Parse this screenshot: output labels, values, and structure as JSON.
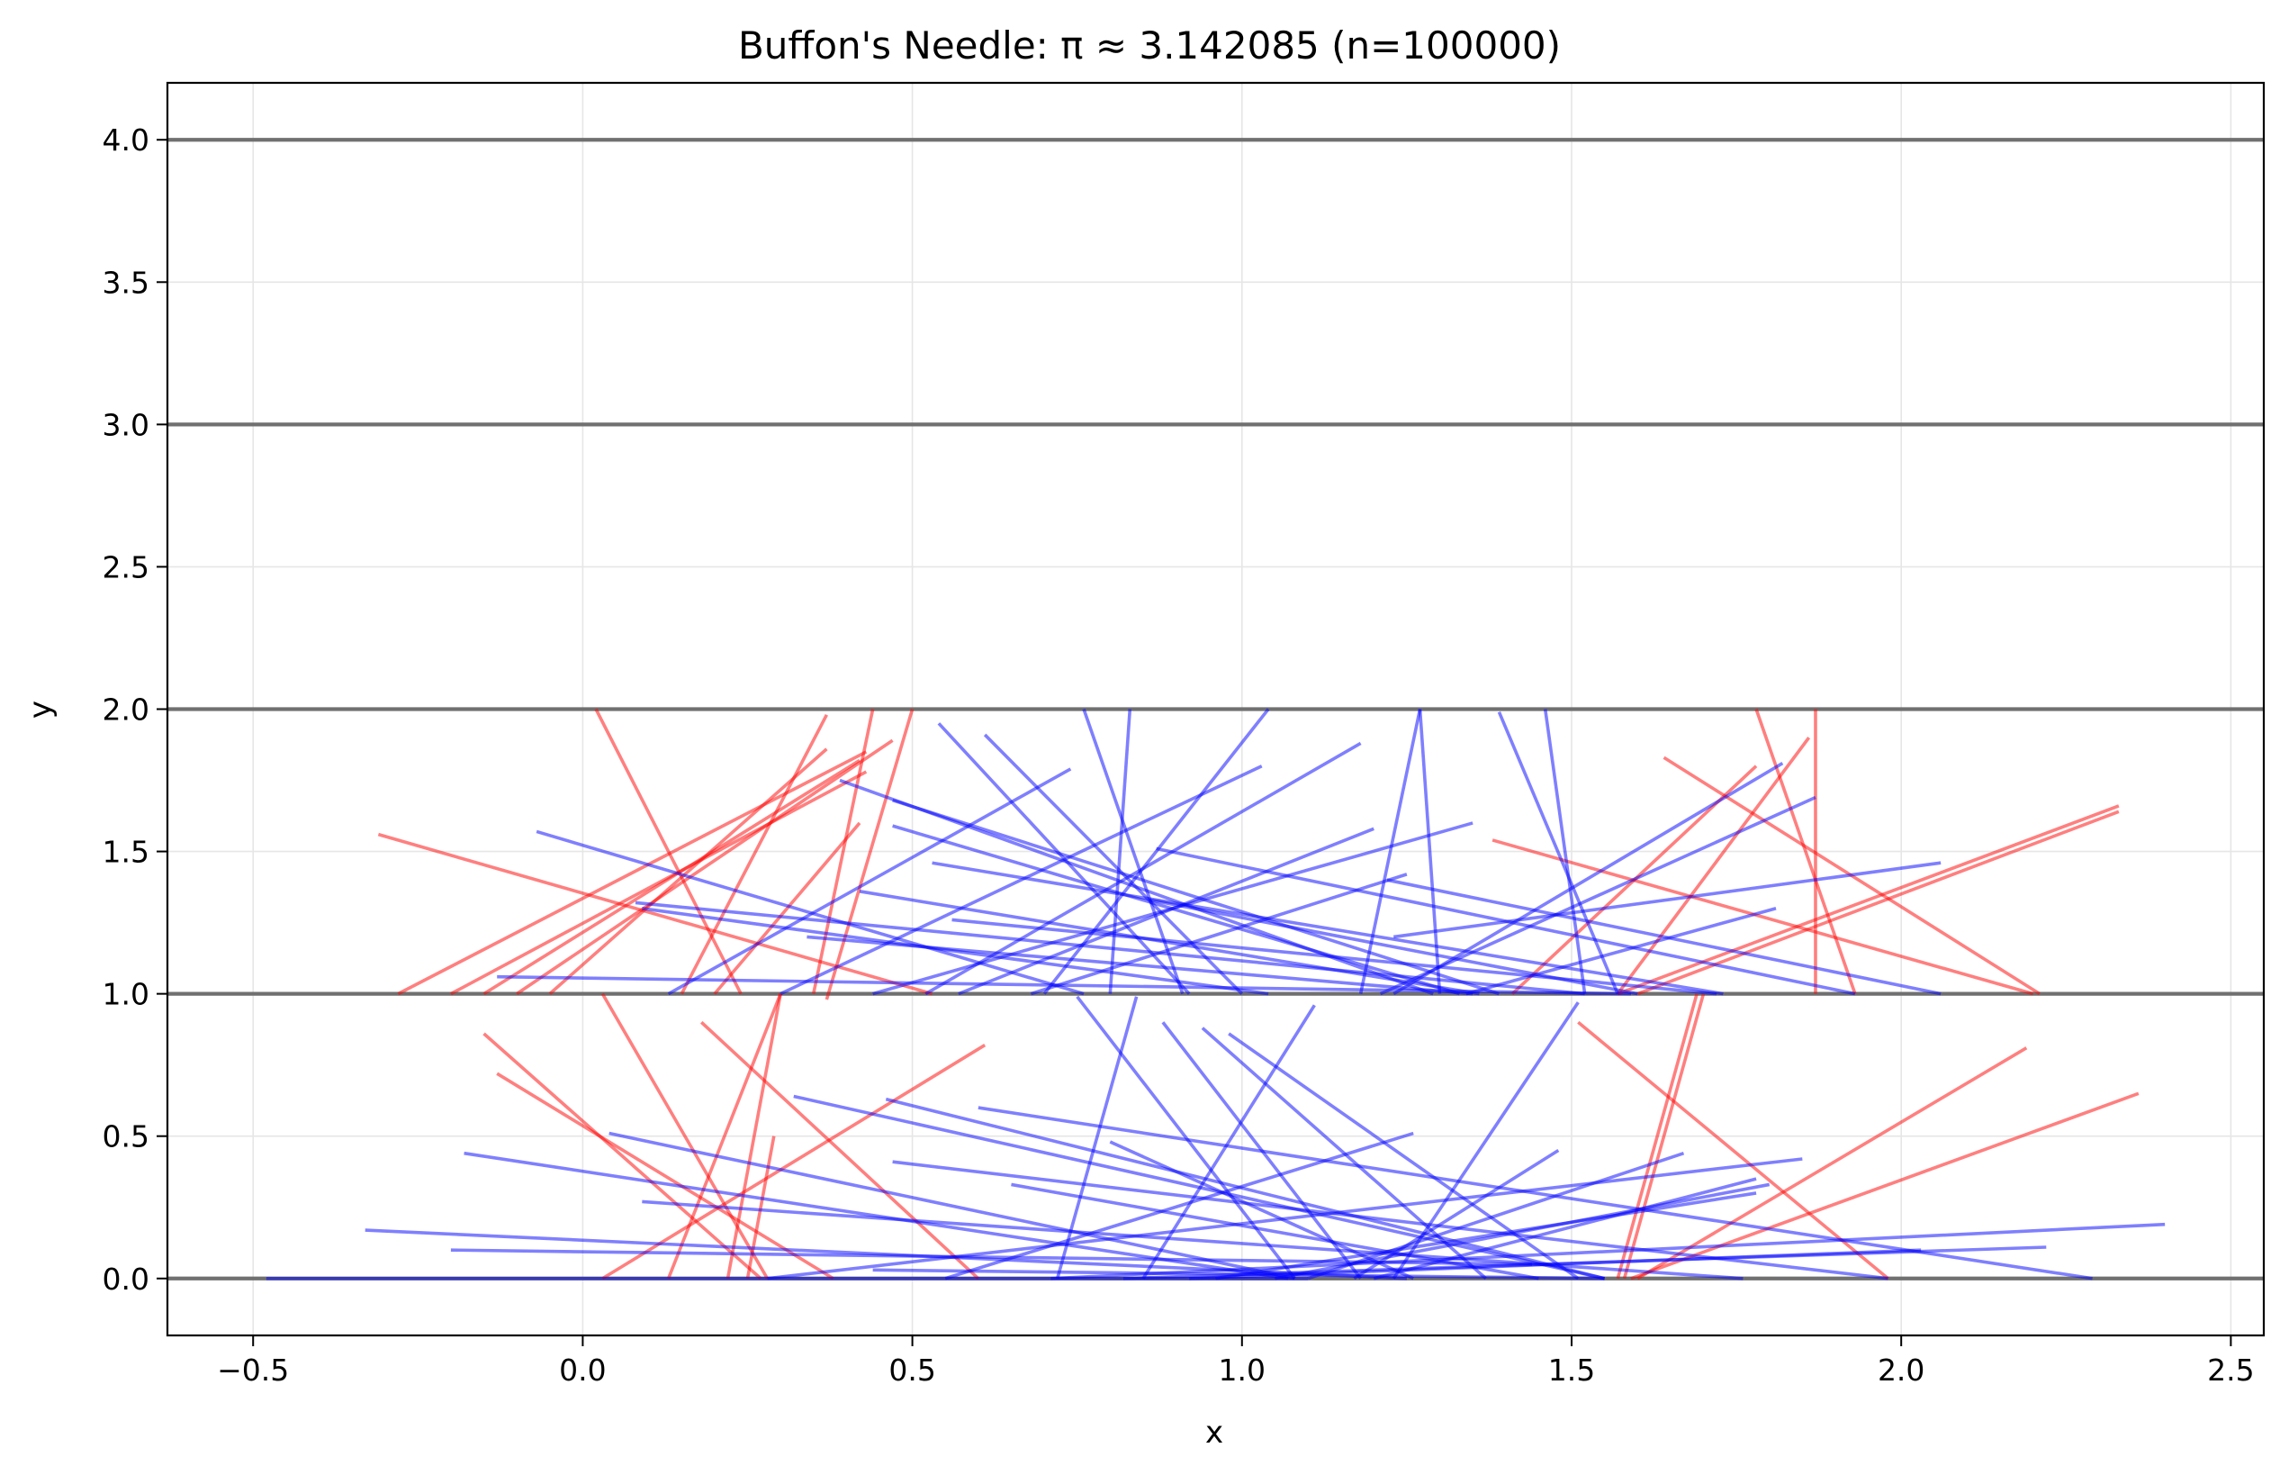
{
  "chart_data": {
    "type": "line",
    "title": "Buffon's Needle: π ≈ 3.142085 (n=100000)",
    "xlabel": "x",
    "ylabel": "y",
    "xlim": [
      -0.63,
      2.55
    ],
    "ylim": [
      -0.2,
      4.2
    ],
    "xticks": [
      -0.5,
      0.0,
      0.5,
      1.0,
      1.5,
      2.0,
      2.5
    ],
    "xtick_labels": [
      "−0.5",
      "0.0",
      "0.5",
      "1.0",
      "1.5",
      "2.0",
      "2.5"
    ],
    "yticks": [
      0.0,
      0.5,
      1.0,
      1.5,
      2.0,
      2.5,
      3.0,
      3.5,
      4.0
    ],
    "ytick_labels": [
      "0.0",
      "0.5",
      "1.0",
      "1.5",
      "2.0",
      "2.5",
      "3.0",
      "3.5",
      "4.0"
    ],
    "grid": true,
    "floor_lines": [
      0,
      1,
      2,
      3,
      4
    ],
    "colors": {
      "crossing": "#ff0000",
      "non_crossing": "#0000ff",
      "floor_line": "#707070",
      "grid": "#e6e6e6"
    },
    "needles_crossing": [
      [
        -0.28,
        1.0,
        0.43,
        1.85
      ],
      [
        -0.2,
        1.0,
        0.43,
        1.78
      ],
      [
        -0.15,
        1.0,
        0.42,
        1.82
      ],
      [
        -0.1,
        1.0,
        0.47,
        1.89
      ],
      [
        -0.05,
        1.0,
        0.37,
        1.86
      ],
      [
        0.15,
        1.0,
        0.37,
        1.98
      ],
      [
        0.35,
        1.0,
        0.44,
        2.0
      ],
      [
        0.37,
        0.98,
        0.5,
        2.0
      ],
      [
        0.02,
        2.0,
        0.24,
        1.0
      ],
      [
        -0.31,
        1.56,
        0.53,
        1.0
      ],
      [
        0.2,
        1.0,
        0.42,
        1.6
      ],
      [
        0.03,
        1.0,
        0.28,
        0.0
      ],
      [
        0.13,
        0.0,
        0.3,
        1.0
      ],
      [
        0.22,
        0.0,
        0.3,
        1.0
      ],
      [
        0.25,
        0.0,
        0.29,
        0.5
      ],
      [
        -0.15,
        0.86,
        0.27,
        0.0
      ],
      [
        -0.13,
        0.72,
        0.38,
        0.0
      ],
      [
        0.18,
        0.9,
        0.6,
        0.0
      ],
      [
        0.03,
        0.0,
        0.61,
        0.82
      ],
      [
        1.78,
        2.0,
        1.93,
        1.0
      ],
      [
        1.64,
        1.83,
        2.21,
        1.0
      ],
      [
        1.87,
        2.0,
        1.87,
        1.0
      ],
      [
        1.78,
        1.8,
        1.41,
        1.0
      ],
      [
        1.86,
        1.9,
        1.57,
        1.0
      ],
      [
        1.38,
        1.54,
        2.2,
        1.0
      ],
      [
        1.57,
        1.0,
        2.33,
        1.66
      ],
      [
        1.6,
        1.0,
        2.33,
        1.64
      ],
      [
        1.57,
        0.0,
        1.69,
        1.0
      ],
      [
        1.58,
        0.0,
        1.7,
        1.0
      ],
      [
        1.51,
        0.9,
        1.98,
        0.0
      ],
      [
        1.6,
        0.0,
        2.19,
        0.81
      ],
      [
        1.59,
        0.0,
        2.36,
        0.65
      ]
    ],
    "needles_non_crossing": [
      [
        -0.48,
        0.0,
        1.1,
        0.0
      ],
      [
        -0.33,
        0.17,
        1.25,
        0.0
      ],
      [
        -0.2,
        0.1,
        1.44,
        0.05
      ],
      [
        -0.18,
        0.44,
        1.07,
        0.0
      ],
      [
        0.04,
        0.51,
        1.08,
        0.0
      ],
      [
        0.09,
        0.27,
        1.76,
        0.0
      ],
      [
        0.28,
        0.0,
        1.85,
        0.42
      ],
      [
        0.32,
        0.64,
        1.55,
        0.0
      ],
      [
        0.46,
        0.63,
        1.55,
        0.0
      ],
      [
        0.47,
        0.41,
        1.98,
        0.0
      ],
      [
        0.6,
        0.6,
        2.29,
        0.0
      ],
      [
        0.71,
        0.0,
        2.4,
        0.19
      ],
      [
        0.82,
        0.0,
        2.22,
        0.11
      ],
      [
        0.92,
        0.0,
        2.03,
        0.1
      ],
      [
        0.96,
        0.0,
        1.78,
        0.3
      ],
      [
        0.72,
        0.0,
        0.84,
        0.99
      ],
      [
        0.85,
        0.0,
        1.11,
        0.96
      ],
      [
        0.75,
        0.99,
        1.08,
        0.0
      ],
      [
        0.88,
        0.9,
        1.18,
        0.0
      ],
      [
        0.94,
        0.88,
        1.37,
        0.0
      ],
      [
        0.98,
        0.86,
        1.51,
        0.0
      ],
      [
        1.23,
        0.0,
        1.51,
        0.97
      ],
      [
        1.17,
        0.0,
        1.48,
        0.45
      ],
      [
        1.1,
        0.0,
        1.67,
        0.44
      ],
      [
        1.05,
        0.0,
        1.8,
        0.33
      ],
      [
        0.8,
        0.48,
        1.26,
        0.0
      ],
      [
        0.55,
        0.0,
        1.26,
        0.51
      ],
      [
        0.44,
        0.03,
        1.55,
        0.0
      ],
      [
        0.65,
        0.33,
        1.45,
        0.0
      ],
      [
        1.2,
        0.0,
        1.78,
        0.35
      ],
      [
        0.13,
        1.0,
        0.74,
        1.79
      ],
      [
        0.3,
        1.0,
        1.03,
        1.8
      ],
      [
        0.52,
        1.0,
        1.18,
        1.88
      ],
      [
        0.54,
        1.95,
        0.92,
        1.0
      ],
      [
        0.61,
        1.91,
        1.0,
        1.0
      ],
      [
        0.76,
        2.0,
        0.91,
        1.0
      ],
      [
        0.8,
        1.0,
        0.83,
        2.0
      ],
      [
        0.7,
        1.0,
        1.04,
        2.0
      ],
      [
        0.39,
        1.75,
        1.29,
        1.0
      ],
      [
        0.47,
        1.68,
        1.39,
        1.0
      ],
      [
        0.47,
        1.59,
        1.33,
        1.0
      ],
      [
        -0.07,
        1.57,
        0.76,
        1.0
      ],
      [
        0.08,
        1.32,
        1.52,
        1.0
      ],
      [
        0.09,
        1.3,
        1.04,
        1.0
      ],
      [
        -0.13,
        1.06,
        1.59,
        1.0
      ],
      [
        0.42,
        1.36,
        1.36,
        1.0
      ],
      [
        0.53,
        1.46,
        1.73,
        1.0
      ],
      [
        0.44,
        1.0,
        1.35,
        1.6
      ],
      [
        0.57,
        1.0,
        1.2,
        1.58
      ],
      [
        0.68,
        1.0,
        1.25,
        1.42
      ],
      [
        0.87,
        1.51,
        1.93,
        1.0
      ],
      [
        1.22,
        1.4,
        2.06,
        1.0
      ],
      [
        1.23,
        1.2,
        2.06,
        1.46
      ],
      [
        1.21,
        1.0,
        1.87,
        1.69
      ],
      [
        1.23,
        1.0,
        1.82,
        1.81
      ],
      [
        1.34,
        1.0,
        1.81,
        1.3
      ],
      [
        1.18,
        1.0,
        1.27,
        2.0
      ],
      [
        1.27,
        2.0,
        1.3,
        1.0
      ],
      [
        1.39,
        1.99,
        1.57,
        1.0
      ],
      [
        1.46,
        2.0,
        1.52,
        1.0
      ],
      [
        0.34,
        1.2,
        1.35,
        1.0
      ],
      [
        0.86,
        1.33,
        1.6,
        1.0
      ],
      [
        0.56,
        1.26,
        1.72,
        1.0
      ]
    ]
  }
}
